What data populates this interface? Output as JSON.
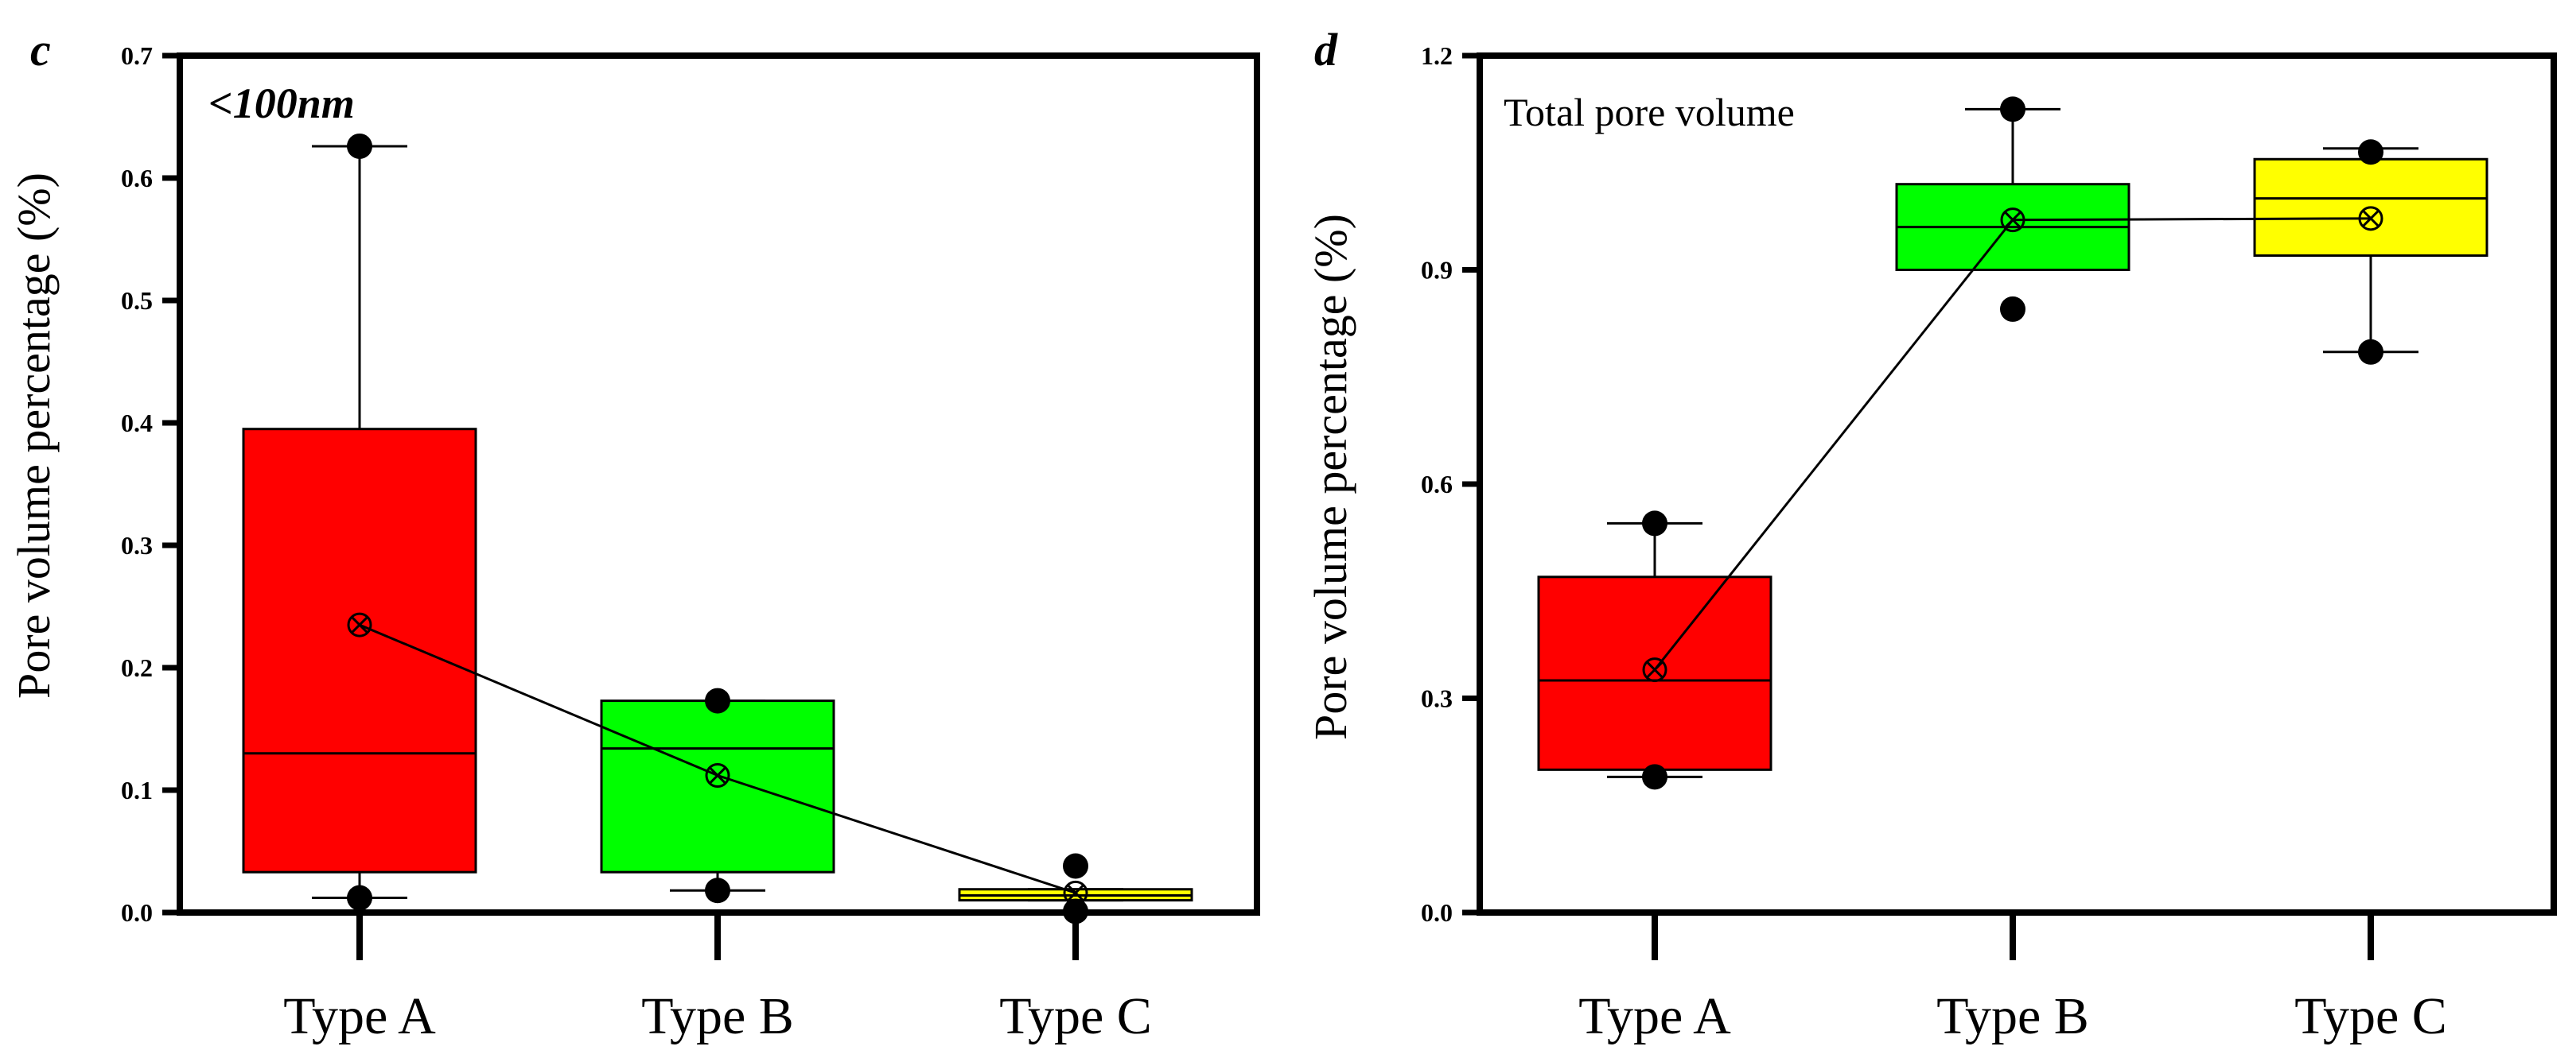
{
  "chart_data": [
    {
      "panel_label": "c",
      "type": "box",
      "title": "<100nm",
      "title_italic_bold": true,
      "ylabel": "Pore volume percentage (%)",
      "xlabel": "",
      "categories": [
        "Type A",
        "Type B",
        "Type C"
      ],
      "ylim": [
        0,
        0.7
      ],
      "yticks": [
        0.0,
        0.1,
        0.2,
        0.3,
        0.4,
        0.5,
        0.6,
        0.7
      ],
      "ytick_labels": [
        "0.0",
        "0.1",
        "0.2",
        "0.3",
        "0.4",
        "0.5",
        "0.6",
        "0.7"
      ],
      "boxes": [
        {
          "category": "Type A",
          "whisker_low": 0.012,
          "q1": 0.033,
          "median": 0.13,
          "q3": 0.395,
          "whisker_high": 0.626,
          "mean": 0.235,
          "outliers": [
            0.012,
            0.626
          ],
          "color": "#ff0000"
        },
        {
          "category": "Type B",
          "whisker_low": 0.018,
          "q1": 0.033,
          "median": 0.134,
          "q3": 0.173,
          "whisker_high": 0.173,
          "mean": 0.112,
          "outliers": [
            0.018,
            0.173
          ],
          "color": "#00ff00"
        },
        {
          "category": "Type C",
          "whisker_low": 0.01,
          "q1": 0.01,
          "median": 0.014,
          "q3": 0.019,
          "whisker_high": 0.019,
          "mean": 0.016,
          "outliers": [
            0.001,
            0.038
          ],
          "color": "#ffff00"
        }
      ],
      "mean_line": true
    },
    {
      "panel_label": "d",
      "type": "box",
      "title": "Total pore volume",
      "title_italic_bold": false,
      "ylabel": "Pore volume percentage (%)",
      "xlabel": "",
      "categories": [
        "Type A",
        "Type B",
        "Type C"
      ],
      "ylim": [
        0,
        1.2
      ],
      "yticks": [
        0.0,
        0.3,
        0.6,
        0.9,
        1.2
      ],
      "ytick_labels": [
        "0.0",
        "0.3",
        "0.6",
        "0.9",
        "1.2"
      ],
      "boxes": [
        {
          "category": "Type A",
          "whisker_low": 0.19,
          "q1": 0.2,
          "median": 0.325,
          "q3": 0.47,
          "whisker_high": 0.545,
          "mean": 0.34,
          "outliers": [
            0.19,
            0.545
          ],
          "color": "#ff0000"
        },
        {
          "category": "Type B",
          "whisker_low": 0.9,
          "q1": 0.9,
          "median": 0.96,
          "q3": 1.02,
          "whisker_high": 1.125,
          "mean": 0.97,
          "outliers": [
            0.845,
            1.125
          ],
          "color": "#00ff00"
        },
        {
          "category": "Type C",
          "whisker_low": 0.785,
          "q1": 0.92,
          "median": 1.0,
          "q3": 1.055,
          "whisker_high": 1.07,
          "mean": 0.972,
          "outliers": [
            0.785,
            1.065
          ],
          "color": "#ffff00"
        }
      ],
      "mean_line": true
    }
  ]
}
